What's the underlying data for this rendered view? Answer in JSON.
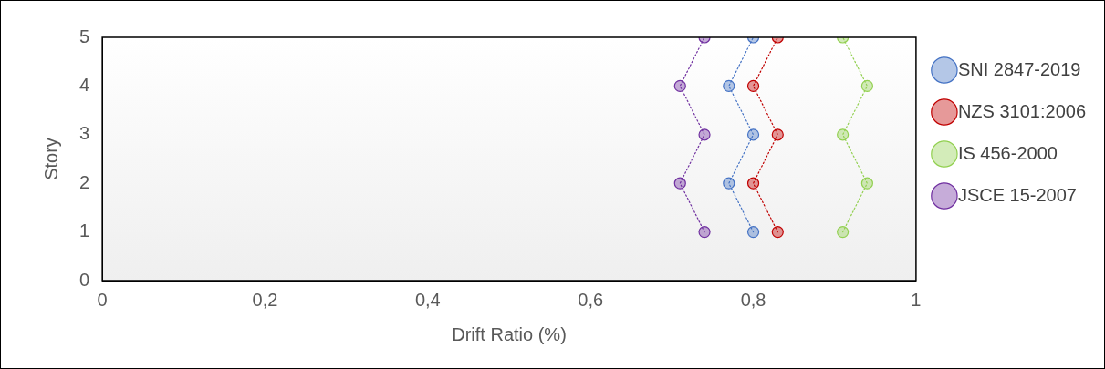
{
  "chart_data": {
    "type": "line",
    "xlabel": "Drift Ratio (%)",
    "ylabel": "Story",
    "xlim": [
      0,
      1
    ],
    "xticks": [
      0,
      {
        "value": 0.2,
        "label": "0,2"
      },
      {
        "value": 0.4,
        "label": "0,4"
      },
      {
        "value": 0.6,
        "label": "0,6"
      },
      {
        "value": 0.8,
        "label": "0,8"
      },
      1
    ],
    "ylim": [
      0,
      5
    ],
    "yticks": [
      0,
      1,
      2,
      3,
      4,
      5
    ],
    "grid": false,
    "legend": "right",
    "marker": "circle",
    "line_style": "dotted",
    "series": [
      {
        "name": "SNI 2847-2019",
        "color": "#4472c4",
        "x": [
          0.8,
          0.77,
          0.8,
          0.77,
          0.8
        ],
        "values": [
          1,
          2,
          3,
          4,
          5
        ]
      },
      {
        "name": "NZS 3101:2006",
        "color": "#c00000",
        "x": [
          0.83,
          0.8,
          0.83,
          0.8,
          0.83
        ],
        "values": [
          1,
          2,
          3,
          4,
          5
        ]
      },
      {
        "name": "IS 456-2000",
        "color": "#92d050",
        "x": [
          0.91,
          0.94,
          0.91,
          0.94,
          0.91
        ],
        "values": [
          1,
          2,
          3,
          4,
          5
        ]
      },
      {
        "name": "JSCE 15-2007",
        "color": "#7030a0",
        "x": [
          0.74,
          0.71,
          0.74,
          0.71,
          0.74
        ],
        "values": [
          1,
          2,
          3,
          4,
          5
        ]
      }
    ]
  }
}
